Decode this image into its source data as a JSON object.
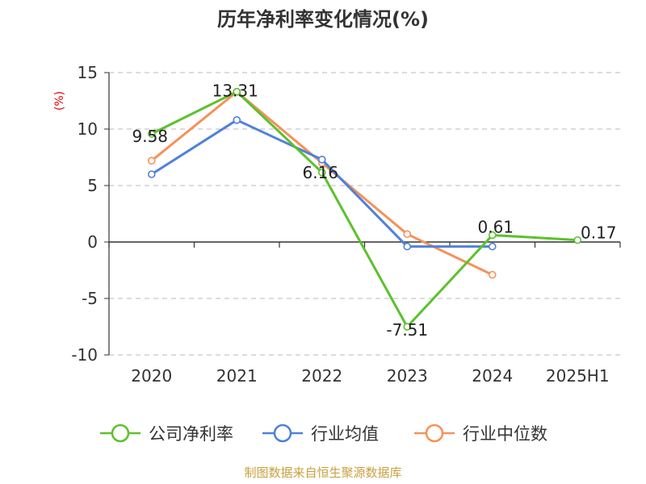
{
  "chart_data": {
    "type": "line",
    "title": "历年净利率变化情况(%)",
    "ylabel": "(%)",
    "xlabel": "",
    "categories": [
      "2020",
      "2021",
      "2022",
      "2023",
      "2024",
      "2025H1"
    ],
    "ylim": [
      -10,
      15
    ],
    "yticks": [
      15,
      10,
      5,
      0,
      -5,
      -10
    ],
    "grid": true,
    "legend_position": "bottom",
    "series": [
      {
        "name": "公司净利率",
        "color": "#5cc12c",
        "values": [
          9.58,
          13.31,
          6.16,
          -7.51,
          0.61,
          0.17
        ],
        "labels": [
          "9.58",
          "13.31",
          "6.16",
          "-7.51",
          "0.61",
          "0.17"
        ]
      },
      {
        "name": "行业均值",
        "color": "#4f81d9",
        "values": [
          6.0,
          10.8,
          7.3,
          -0.4,
          -0.4,
          null
        ]
      },
      {
        "name": "行业中位数",
        "color": "#f5915a",
        "values": [
          7.2,
          13.3,
          7.0,
          0.7,
          -2.9,
          null
        ]
      }
    ]
  },
  "footer": {
    "source": "制图数据来自恒生聚源数据库"
  }
}
